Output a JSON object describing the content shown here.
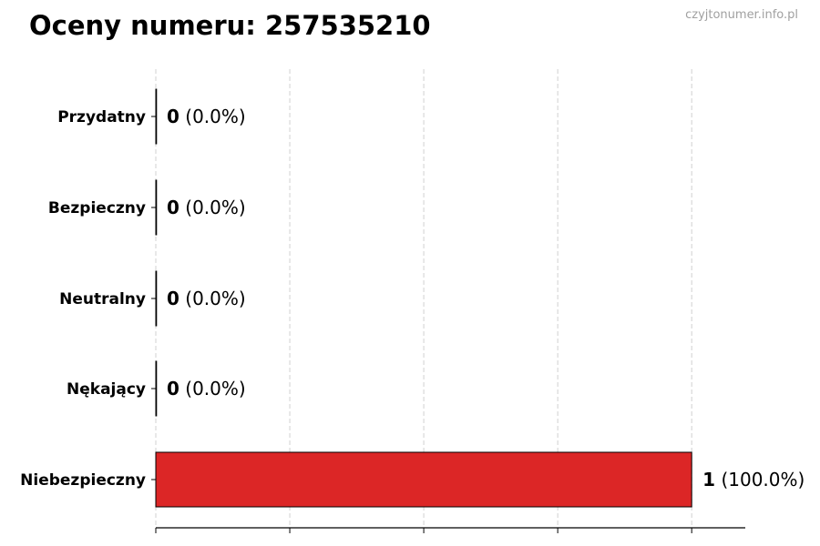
{
  "watermark": "czyjtonumer.info.pl",
  "chart_data": {
    "type": "bar",
    "orientation": "horizontal",
    "title": "Oceny numeru: 257535210",
    "xlabel": "",
    "ylabel": "",
    "categories": [
      "Przydatny",
      "Bezpieczny",
      "Neutralny",
      "Nękający",
      "Niebezpieczny"
    ],
    "values": [
      0,
      0,
      0,
      0,
      1
    ],
    "percent_labels": [
      "(0.0%)",
      "(0.0%)",
      "(0.0%)",
      "(0.0%)",
      "(100.0%)"
    ],
    "xlim": [
      0,
      1.1
    ],
    "xticks": [
      0,
      0.25,
      0.5,
      0.75,
      1.0
    ],
    "grid": "x dashed",
    "bar_color": "#dc2626",
    "edge_color": "#000000"
  }
}
